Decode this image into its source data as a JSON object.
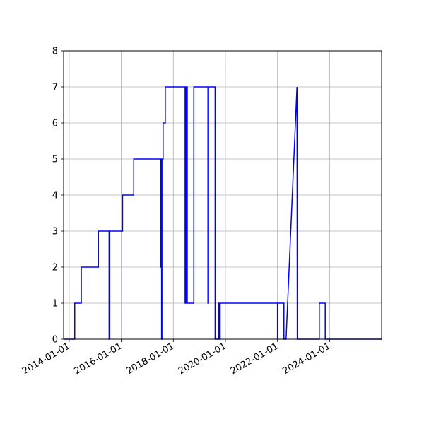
{
  "chart_data": {
    "type": "line",
    "title": "",
    "xlabel": "",
    "ylabel": "",
    "grid": true,
    "x_axis": {
      "scale": "time",
      "range": [
        "2013-10-15",
        "2025-12-31"
      ],
      "ticks": [
        "2014-01-01",
        "2016-01-01",
        "2018-01-01",
        "2020-01-01",
        "2022-01-01",
        "2024-01-01"
      ],
      "tick_labels": [
        "2014-01-01",
        "2016-01-01",
        "2018-01-01",
        "2020-01-01",
        "2022-01-01",
        "2024-01-01"
      ]
    },
    "y_axis": {
      "range": [
        0,
        8
      ],
      "ticks": [
        0,
        1,
        2,
        3,
        4,
        5,
        6,
        7,
        8
      ],
      "tick_labels": [
        "0",
        "1",
        "2",
        "3",
        "4",
        "5",
        "6",
        "7",
        "8"
      ]
    },
    "series": [
      {
        "color": "#0000ff",
        "x": [
          "2013-10-15",
          "2014-03-20",
          "2014-03-20",
          "2014-06-20",
          "2014-06-20",
          "2015-02-15",
          "2015-02-15",
          "2015-07-15",
          "2015-07-15",
          "2015-07-25",
          "2015-07-25",
          "2015-07-30",
          "2015-07-30",
          "2016-01-20",
          "2016-01-20",
          "2016-06-25",
          "2016-06-25",
          "2017-07-10",
          "2017-07-10",
          "2017-07-13",
          "2017-07-13",
          "2017-07-20",
          "2017-07-20",
          "2017-07-25",
          "2017-07-25",
          "2017-07-27",
          "2017-07-27",
          "2017-08-10",
          "2017-08-10",
          "2017-09-10",
          "2017-09-10",
          "2017-12-01",
          "2017-12-01",
          "2018-06-15",
          "2018-06-15",
          "2018-06-20",
          "2018-06-20",
          "2018-07-01",
          "2018-07-01",
          "2018-07-10",
          "2018-07-10",
          "2018-07-15",
          "2018-07-15",
          "2018-10-15",
          "2018-10-15",
          "2018-10-25",
          "2018-10-25",
          "2019-05-01",
          "2019-05-01",
          "2019-05-10",
          "2019-05-10",
          "2019-08-10",
          "2019-08-10",
          "2019-08-20",
          "2019-08-20",
          "2019-10-01",
          "2019-10-01",
          "2019-10-10",
          "2019-10-10",
          "2019-10-20",
          "2019-10-20",
          "2022-01-01",
          "2022-01-01",
          "2022-01-05",
          "2022-01-05",
          "2022-04-01",
          "2022-04-01",
          "2022-05-01",
          "2022-05-01",
          "2022-10-01",
          "2022-10-05",
          "2022-10-05",
          "2023-08-10",
          "2023-08-10",
          "2023-11-01",
          "2023-11-01",
          "2025-12-31"
        ],
        "y": [
          0,
          0,
          1,
          1,
          2,
          2,
          3,
          3,
          0,
          0,
          3,
          3,
          3,
          3,
          4,
          4,
          5,
          5,
          2,
          2,
          5,
          5,
          0,
          0,
          5,
          5,
          5,
          5,
          6,
          6,
          7,
          7,
          7,
          7,
          1,
          1,
          7,
          7,
          1,
          1,
          7,
          7,
          1,
          1,
          7,
          7,
          7,
          7,
          1,
          1,
          7,
          7,
          0,
          0,
          0,
          0,
          1,
          1,
          0,
          0,
          1,
          1,
          0,
          0,
          1,
          1,
          0,
          0,
          0,
          7,
          0,
          0,
          0,
          1,
          1,
          0,
          0
        ]
      }
    ]
  }
}
